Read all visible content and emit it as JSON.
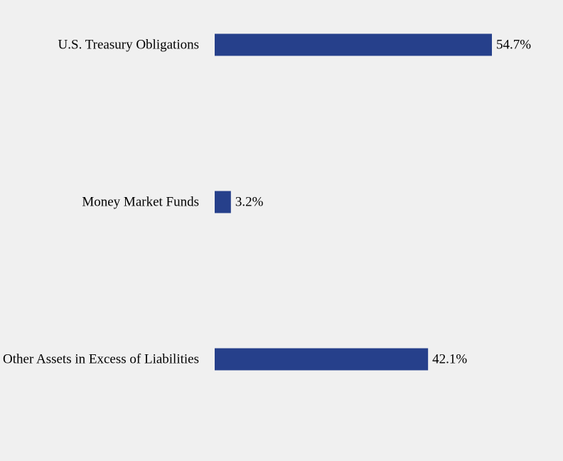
{
  "chart_data": {
    "type": "bar",
    "orientation": "horizontal",
    "categories": [
      "U.S. Treasury Obligations",
      "Money Market Funds",
      "Other Assets in Excess of Liabilities"
    ],
    "values": [
      54.7,
      3.2,
      42.1
    ],
    "value_labels": [
      "54.7%",
      "3.2%",
      "42.1%"
    ],
    "unit": "%",
    "xlim": [
      0,
      54.7
    ],
    "grid": false,
    "colors": {
      "bar": "#26408b",
      "background": "#f0f0f0",
      "text": "#000000"
    }
  }
}
